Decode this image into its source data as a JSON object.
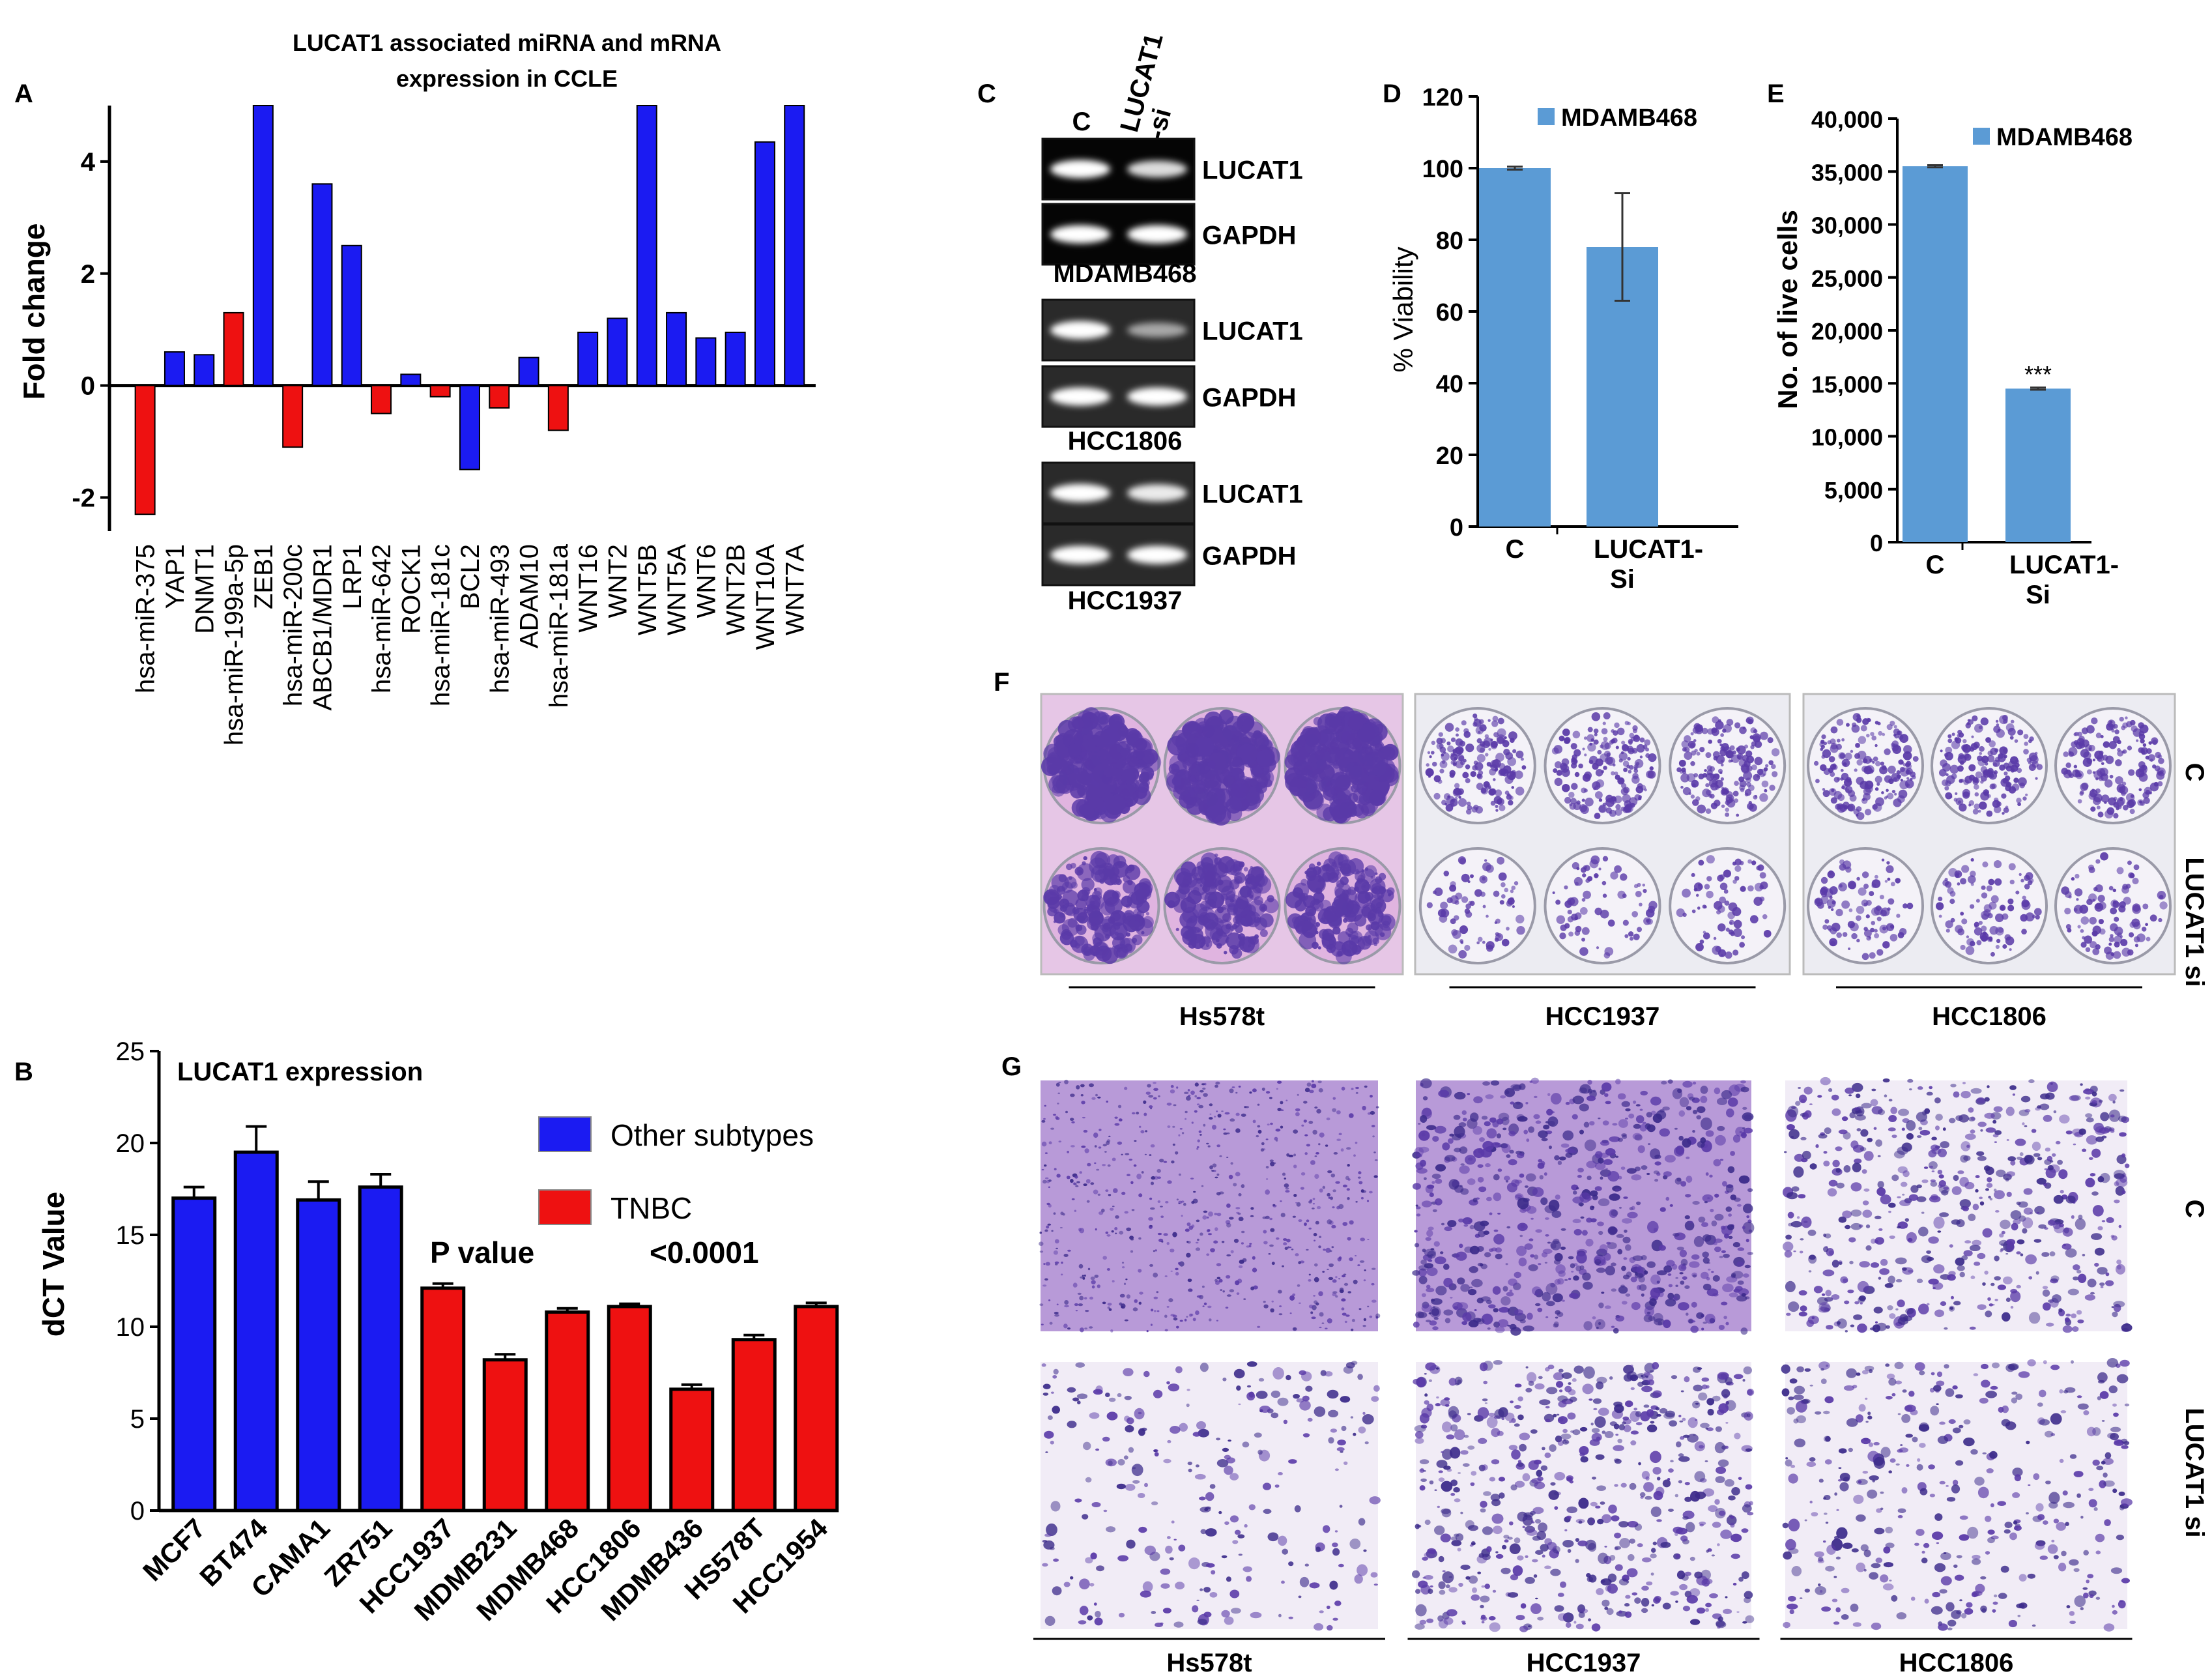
{
  "panel_labels": {
    "a": "A",
    "b": "B",
    "c": "C",
    "d": "D",
    "e": "E",
    "f": "F",
    "g": "G"
  },
  "colors": {
    "blue": "#1b1bf2",
    "red": "#ee1111",
    "light_blue": "#5b9bd5",
    "stain": "#5a3aa8",
    "stain_light": "#c8a9de",
    "dark": "#141414"
  },
  "chart_data": [
    {
      "id": "A",
      "type": "bar",
      "title": "LUCAT1 associated miRNA and mRNA expression in CCLE",
      "title_lines": [
        "LUCAT1 associated miRNA and mRNA",
        "expression in CCLE"
      ],
      "ylabel": "Fold change",
      "xlabel": "",
      "ylim": [
        -2.6,
        5
      ],
      "yticks": [
        -2,
        0,
        2,
        4
      ],
      "categories": [
        "hsa-miR-375",
        "YAP1",
        "DNMT1",
        "hsa-miR-199a-5p",
        "ZEB1",
        "hsa-miR-200c",
        "ABCB1/MDR1",
        "LRP1",
        "hsa-miR-642",
        "ROCK1",
        "hsa-miR-181c",
        "BCL2",
        "hsa-miR-493",
        "ADAM10",
        "hsa-miR-181a",
        "WNT16",
        "WNT2",
        "WNT5B",
        "WNT5A",
        "WNT6",
        "WNT2B",
        "WNT10A",
        "WNT7A"
      ],
      "values": [
        -2.3,
        0.6,
        0.55,
        1.3,
        5.0,
        -1.1,
        3.6,
        2.5,
        -0.5,
        0.2,
        -0.2,
        -1.5,
        -0.4,
        0.5,
        -0.8,
        0.95,
        1.2,
        5.0,
        1.3,
        0.85,
        0.95,
        4.35,
        5.0
      ],
      "bar_colors": [
        "red",
        "blue",
        "blue",
        "red",
        "blue",
        "red",
        "blue",
        "blue",
        "red",
        "blue",
        "red",
        "blue",
        "red",
        "blue",
        "red",
        "blue",
        "blue",
        "blue",
        "blue",
        "blue",
        "blue",
        "blue",
        "blue"
      ]
    },
    {
      "id": "B",
      "type": "bar",
      "title": "LUCAT1 expression",
      "ylabel": "dCT Value",
      "xlabel": "",
      "ylim": [
        0,
        25
      ],
      "yticks": [
        0,
        5,
        10,
        15,
        20,
        25
      ],
      "categories": [
        "MCF7",
        "BT474",
        "CAMA1",
        "ZR751",
        "HCC1937",
        "MDMB231",
        "MDMB468",
        "HCC1806",
        "MDMB436",
        "HS578T",
        "HCC1954"
      ],
      "values": [
        17.0,
        19.5,
        16.9,
        17.6,
        12.1,
        8.2,
        10.8,
        11.1,
        6.6,
        9.3,
        11.1
      ],
      "errors": [
        0.6,
        1.4,
        1.0,
        0.7,
        0.25,
        0.3,
        0.2,
        0.15,
        0.25,
        0.25,
        0.2
      ],
      "groups": [
        "Other subtypes",
        "Other subtypes",
        "Other subtypes",
        "Other subtypes",
        "TNBC",
        "TNBC",
        "TNBC",
        "TNBC",
        "TNBC",
        "TNBC",
        "TNBC"
      ],
      "legend": [
        "Other subtypes",
        "TNBC"
      ],
      "pvalue_label": "P value",
      "pvalue": "<0.0001"
    },
    {
      "id": "D",
      "type": "bar",
      "title": "",
      "legend": [
        "MDAMB468"
      ],
      "ylabel": "% Viability",
      "xlabel": "",
      "ylim": [
        0,
        120
      ],
      "yticks": [
        0,
        20,
        40,
        60,
        80,
        100,
        120
      ],
      "categories": [
        "C",
        "LUCAT1-Si"
      ],
      "category_lines": [
        [
          "C"
        ],
        [
          "LUCAT1-",
          "Si"
        ]
      ],
      "values": [
        100,
        78
      ],
      "errors": [
        0.4,
        15
      ]
    },
    {
      "id": "E",
      "type": "bar",
      "title": "",
      "legend": [
        "MDAMB468"
      ],
      "ylabel": "No. of live cells",
      "xlabel": "",
      "ylim": [
        0,
        40000
      ],
      "yticks": [
        0,
        5000,
        10000,
        15000,
        20000,
        25000,
        30000,
        35000,
        40000
      ],
      "ytick_labels": [
        "0",
        "5,000",
        "10,000",
        "15,000",
        "20,000",
        "25,000",
        "30,000",
        "35,000",
        "40,000"
      ],
      "categories": [
        "C",
        "LUCAT1-Si"
      ],
      "category_lines": [
        [
          "C"
        ],
        [
          "LUCAT1-",
          "Si"
        ]
      ],
      "values": [
        35500,
        14500
      ],
      "errors": [
        100,
        100
      ],
      "significance": [
        "",
        "***"
      ]
    }
  ],
  "panel_c": {
    "header_c": "C",
    "header_si_lines": [
      "LUCAT1",
      "-si"
    ],
    "blots": [
      {
        "cell_line": "MDAMB468",
        "bands": [
          {
            "label": "LUCAT1",
            "intensity": [
              1.0,
              0.75
            ]
          },
          {
            "label": "GAPDH",
            "intensity": [
              1.0,
              1.0
            ]
          }
        ]
      },
      {
        "cell_line": "HCC1806",
        "bands": [
          {
            "label": "LUCAT1",
            "intensity": [
              1.0,
              0.35
            ]
          },
          {
            "label": "GAPDH",
            "intensity": [
              1.0,
              1.0
            ]
          }
        ]
      },
      {
        "cell_line": "HCC1937",
        "bands": [
          {
            "label": "LUCAT1",
            "intensity": [
              1.0,
              0.85
            ]
          },
          {
            "label": "GAPDH",
            "intensity": [
              1.0,
              1.0
            ]
          }
        ]
      }
    ]
  },
  "panel_f": {
    "row_labels": [
      "C",
      "LUCAT1 si"
    ],
    "plates": [
      {
        "cell_line": "Hs578t",
        "control_density": 0.9,
        "si_density": 0.6
      },
      {
        "cell_line": "HCC1937",
        "control_density": 0.6,
        "si_density": 0.15
      },
      {
        "cell_line": "HCC1806",
        "control_density": 0.6,
        "si_density": 0.25
      }
    ]
  },
  "panel_g": {
    "row_labels": [
      "C",
      "LUCAT1 si"
    ],
    "columns": [
      {
        "cell_line": "Hs578t",
        "control_density": 0.85,
        "si_density": 0.18
      },
      {
        "cell_line": "HCC1937",
        "control_density": 0.95,
        "si_density": 0.75
      },
      {
        "cell_line": "HCC1806",
        "control_density": 0.7,
        "si_density": 0.4
      }
    ]
  }
}
